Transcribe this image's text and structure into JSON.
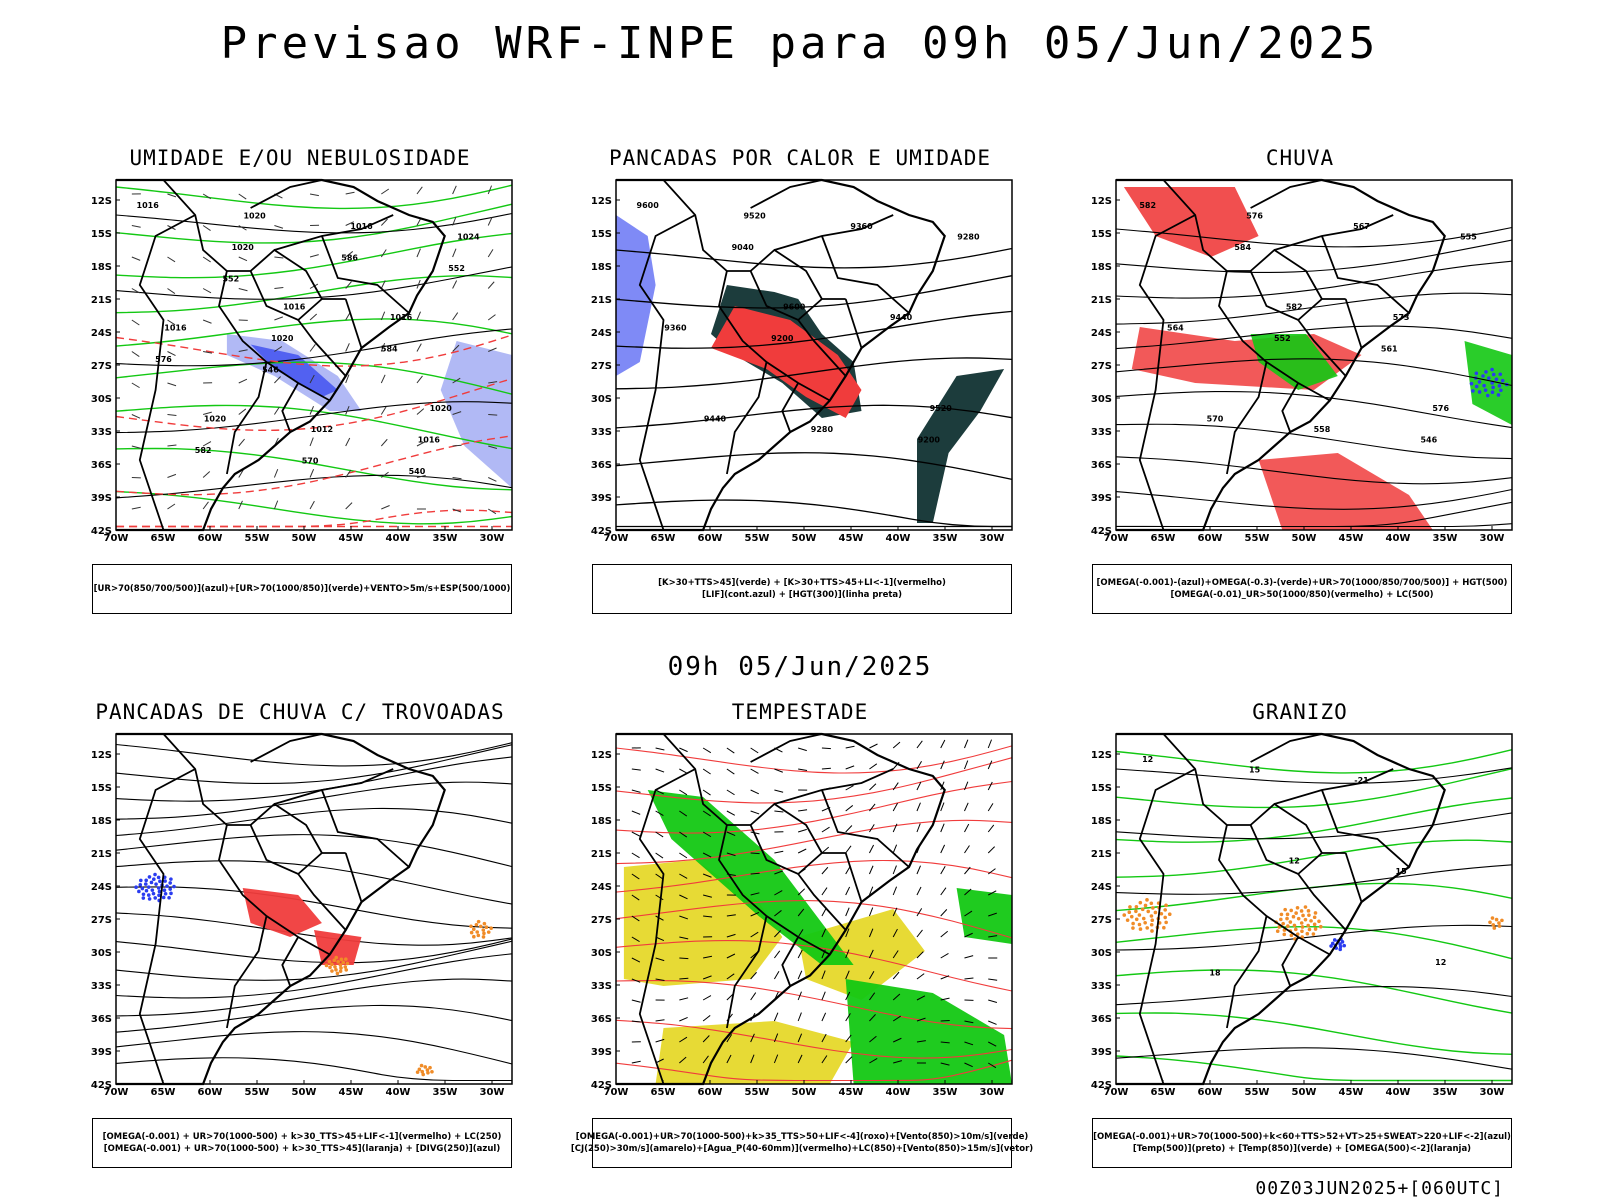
{
  "page": {
    "title": "Previsao WRF-INPE  para 09h 05/Jun/2025",
    "subtitle": "09h 05/Jun/2025",
    "footer": "00Z03JUN2025+[060UTC]"
  },
  "axes": {
    "lat_ticks": [
      "12S",
      "15S",
      "18S",
      "21S",
      "24S",
      "27S",
      "30S",
      "33S",
      "36S",
      "39S",
      "42S"
    ],
    "lon_ticks": [
      "70W",
      "65W",
      "60W",
      "55W",
      "50W",
      "45W",
      "40W",
      "35W",
      "30W"
    ]
  },
  "colors": {
    "blue": "#2a3cf0",
    "lightblue": "#9ea8f2",
    "green": "#13c813",
    "red": "#f03c3c",
    "darkteal": "#1c3c3c",
    "yellow": "#e6d82a",
    "orange": "#f08c28",
    "black": "#000000"
  },
  "panels": [
    {
      "id": "umidade",
      "title": "UMIDADE E/OU NEBULOSIDADE",
      "legend": [
        "[UR>70(850/700/500)](azul)+[UR>70(1000/850)](verde)+VENTO>5m/s+ESP(500/1000)"
      ],
      "contour_labels": [
        "1016",
        "1016",
        "1020",
        "1020",
        "1016",
        "1020",
        "1016",
        "1016",
        "1012",
        "1024",
        "1020",
        "1016",
        "1020",
        "584",
        "582",
        "586",
        "576",
        "570",
        "552",
        "546",
        "540",
        "552"
      ]
    },
    {
      "id": "pancadas-calor",
      "title": "PANCADAS POR CALOR E UMIDADE",
      "legend": [
        "[K>30+TTS>45](verde) + [K>30+TTS>45+LI<-1](vermelho)",
        "[LIF](cont.azul) + [HGT(300)](linha preta)"
      ],
      "contour_labels": [
        "9600",
        "9600",
        "9520",
        "9520",
        "9440",
        "9440",
        "9360",
        "9360",
        "9280",
        "9280",
        "9200",
        "9200",
        "9040"
      ]
    },
    {
      "id": "chuva",
      "title": "CHUVA",
      "legend": [
        "[OMEGA(-0.001)-(azul)+OMEGA(-0.3)-(verde)+UR>70(1000/850/700/500)] + HGT(500)",
        "[OMEGA(-0.01)_UR>50(1000/850)(vermelho) + LC(500)"
      ],
      "contour_labels": [
        "582",
        "582",
        "576",
        "576",
        "573",
        "570",
        "567",
        "564",
        "558",
        "555",
        "552",
        "546",
        "584",
        "561"
      ]
    },
    {
      "id": "pancadas-trovoadas",
      "title": "PANCADAS DE CHUVA C/ TROVOADAS",
      "legend": [
        "[OMEGA(-0.001) + UR>70(1000-500) + k>30_TTS>45+LIF<-1](vermelho) + LC(250)",
        "[OMEGA(-0.001) + UR>70(1000-500) + k>30_TTS>45](laranja) + [DIVG(250)](azul)"
      ],
      "contour_labels": []
    },
    {
      "id": "tempestade",
      "title": "TEMPESTADE",
      "legend": [
        "[OMEGA(-0.001)+UR>70(1000-500)+k>35_TTS>50+LIF<-4](roxo)+[Vento(850)>10m/s](verde)",
        "[CJ(250)>30m/s](amarelo)+[Agua_P(40-60mm)](vermelho)+LC(850)+[Vento(850)>15m/s](vetor)"
      ],
      "contour_labels": []
    },
    {
      "id": "granizo",
      "title": "GRANIZO",
      "legend": [
        "[OMEGA(-0.001)+UR>70(1000-500)+k<60+TTS>52+VT>25+SWEAT>220+LIF<-2](azul)",
        "[Temp(500)](preto) + [Temp(850)](verde) + [OMEGA(500)<-2](laranja)"
      ],
      "contour_labels": [
        "12",
        "12",
        "12",
        "15",
        "15",
        "18",
        "-21"
      ]
    }
  ]
}
